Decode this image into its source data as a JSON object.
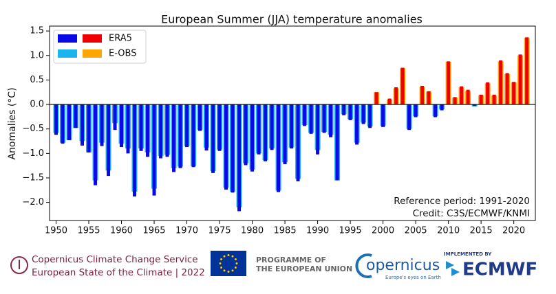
{
  "chart_data": {
    "type": "bar",
    "title": "European Summer (JJA) temperature anomalies",
    "y_label": "Anomalies (°C)",
    "x": [
      1950,
      1951,
      1952,
      1953,
      1954,
      1955,
      1956,
      1957,
      1958,
      1959,
      1960,
      1961,
      1962,
      1963,
      1964,
      1965,
      1966,
      1967,
      1968,
      1969,
      1970,
      1971,
      1972,
      1973,
      1974,
      1975,
      1976,
      1977,
      1978,
      1979,
      1980,
      1981,
      1982,
      1983,
      1984,
      1985,
      1986,
      1987,
      1988,
      1989,
      1990,
      1991,
      1992,
      1993,
      1994,
      1995,
      1996,
      1997,
      1998,
      1999,
      2000,
      2001,
      2002,
      2003,
      2004,
      2005,
      2006,
      2007,
      2008,
      2009,
      2010,
      2011,
      2012,
      2013,
      2014,
      2015,
      2016,
      2017,
      2018,
      2019,
      2020,
      2021,
      2022
    ],
    "series": [
      {
        "name": "E-OBS",
        "colors": [
          "#1ab4ee",
          "#ffa500"
        ],
        "values": [
          -0.58,
          -0.78,
          -0.73,
          -0.48,
          -0.75,
          -0.98,
          -1.55,
          -0.78,
          -1.35,
          -0.38,
          -0.8,
          -0.9,
          -1.78,
          -0.9,
          -0.98,
          -1.72,
          -1.05,
          -1.03,
          -1.3,
          -1.27,
          -0.85,
          -1.26,
          -0.52,
          -0.88,
          -1.36,
          -0.92,
          -1.7,
          -1.78,
          -2.1,
          -1.2,
          -1.33,
          -1.0,
          -1.14,
          -0.9,
          -1.76,
          -1.18,
          -0.88,
          -1.52,
          -0.42,
          -0.58,
          -0.93,
          -0.56,
          -0.62,
          -1.55,
          -0.2,
          -0.3,
          -0.78,
          -0.37,
          -0.45,
          0.25,
          -0.44,
          0.1,
          0.33,
          0.74,
          -0.5,
          -0.24,
          0.36,
          0.26,
          -0.24,
          -0.1,
          0.87,
          0.14,
          0.35,
          0.28,
          -0.04,
          0.19,
          0.43,
          0.18,
          0.88,
          0.62,
          0.45,
          1.0,
          1.36
        ]
      },
      {
        "name": "ERA5",
        "colors": [
          "#0a0ae6",
          "#ee0000"
        ],
        "values": [
          -0.62,
          -0.8,
          -0.73,
          -0.48,
          -0.84,
          -0.98,
          -1.65,
          -0.85,
          -1.46,
          -0.52,
          -0.87,
          -1.0,
          -1.88,
          -0.95,
          -1.07,
          -1.86,
          -1.1,
          -1.07,
          -1.38,
          -1.3,
          -0.87,
          -1.28,
          -0.54,
          -0.94,
          -1.4,
          -0.95,
          -1.74,
          -1.8,
          -2.18,
          -1.24,
          -1.37,
          -1.02,
          -1.16,
          -0.93,
          -1.79,
          -1.22,
          -0.9,
          -1.57,
          -0.44,
          -0.6,
          -1.02,
          -0.58,
          -0.67,
          -1.55,
          -0.22,
          -0.32,
          -0.82,
          -0.4,
          -0.48,
          0.25,
          -0.46,
          0.12,
          0.35,
          0.75,
          -0.52,
          -0.26,
          0.38,
          0.27,
          -0.26,
          -0.12,
          0.88,
          0.15,
          0.37,
          0.3,
          -0.03,
          0.2,
          0.45,
          0.2,
          0.9,
          0.64,
          0.46,
          1.02,
          1.37
        ]
      }
    ],
    "xlim": [
      1949,
      2023.3
    ],
    "xticks": [
      1950,
      1955,
      1960,
      1965,
      1970,
      1975,
      1980,
      1985,
      1990,
      1995,
      2000,
      2005,
      2010,
      2015,
      2020
    ],
    "ylim": [
      -2.37,
      1.6
    ],
    "yticks": [
      {
        "value": -2,
        "label": "−2.0"
      },
      {
        "value": -1.5,
        "label": "−1.5"
      },
      {
        "value": -1,
        "label": "−1.0"
      },
      {
        "value": -0.5,
        "label": "−0.5"
      },
      {
        "value": 0,
        "label": "0.0"
      },
      0.5,
      {
        "value": 1,
        "label": "1.0"
      },
      1.5
    ],
    "legend": "upper left",
    "annotations": [
      "Reference period: 1991-2020",
      "Credit: C3S/ECMWF/KNMI"
    ]
  },
  "footer": {
    "c3s_line1": "Copernicus Climate Change Service",
    "c3s_line2": "European State of the Climate | 2022",
    "eu_line1": "PROGRAMME OF",
    "eu_line2": "THE EUROPEAN UNION",
    "copernicus": "opernicus",
    "copernicus_tagline": "Europe's eyes on Earth",
    "ecmwf_top": "IMPLEMENTED BY",
    "ecmwf": "ECMWF"
  }
}
